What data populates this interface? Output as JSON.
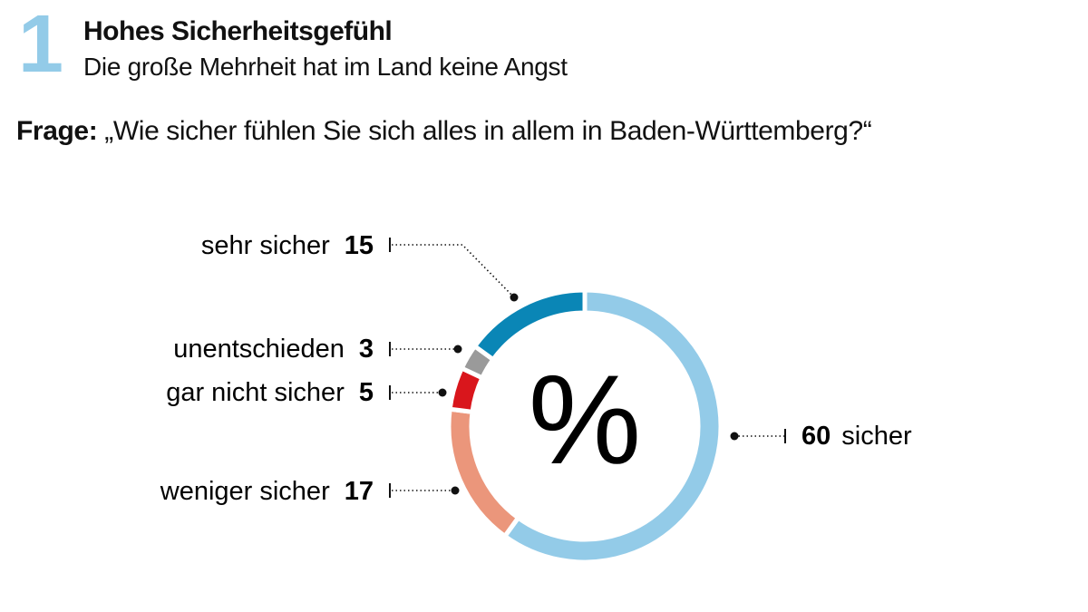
{
  "chart_data": {
    "type": "donut",
    "section_number": "1",
    "title": "Hohes Sicherheitsgefühl",
    "subtitle": "Die große Mehrheit hat im Land keine Angst",
    "question_label": "Frage:",
    "question": "„Wie sicher fühlen Sie sich alles in allem in Baden-Württemberg?“",
    "center_label": "%",
    "categories": [
      "sicher",
      "weniger sicher",
      "gar nicht sicher",
      "unentschieden",
      "sehr sicher"
    ],
    "values": [
      60,
      17,
      5,
      3,
      15
    ],
    "colors": [
      "#93cbe8",
      "#eb967b",
      "#d9161c",
      "#9a9a9a",
      "#0a86b6"
    ]
  }
}
